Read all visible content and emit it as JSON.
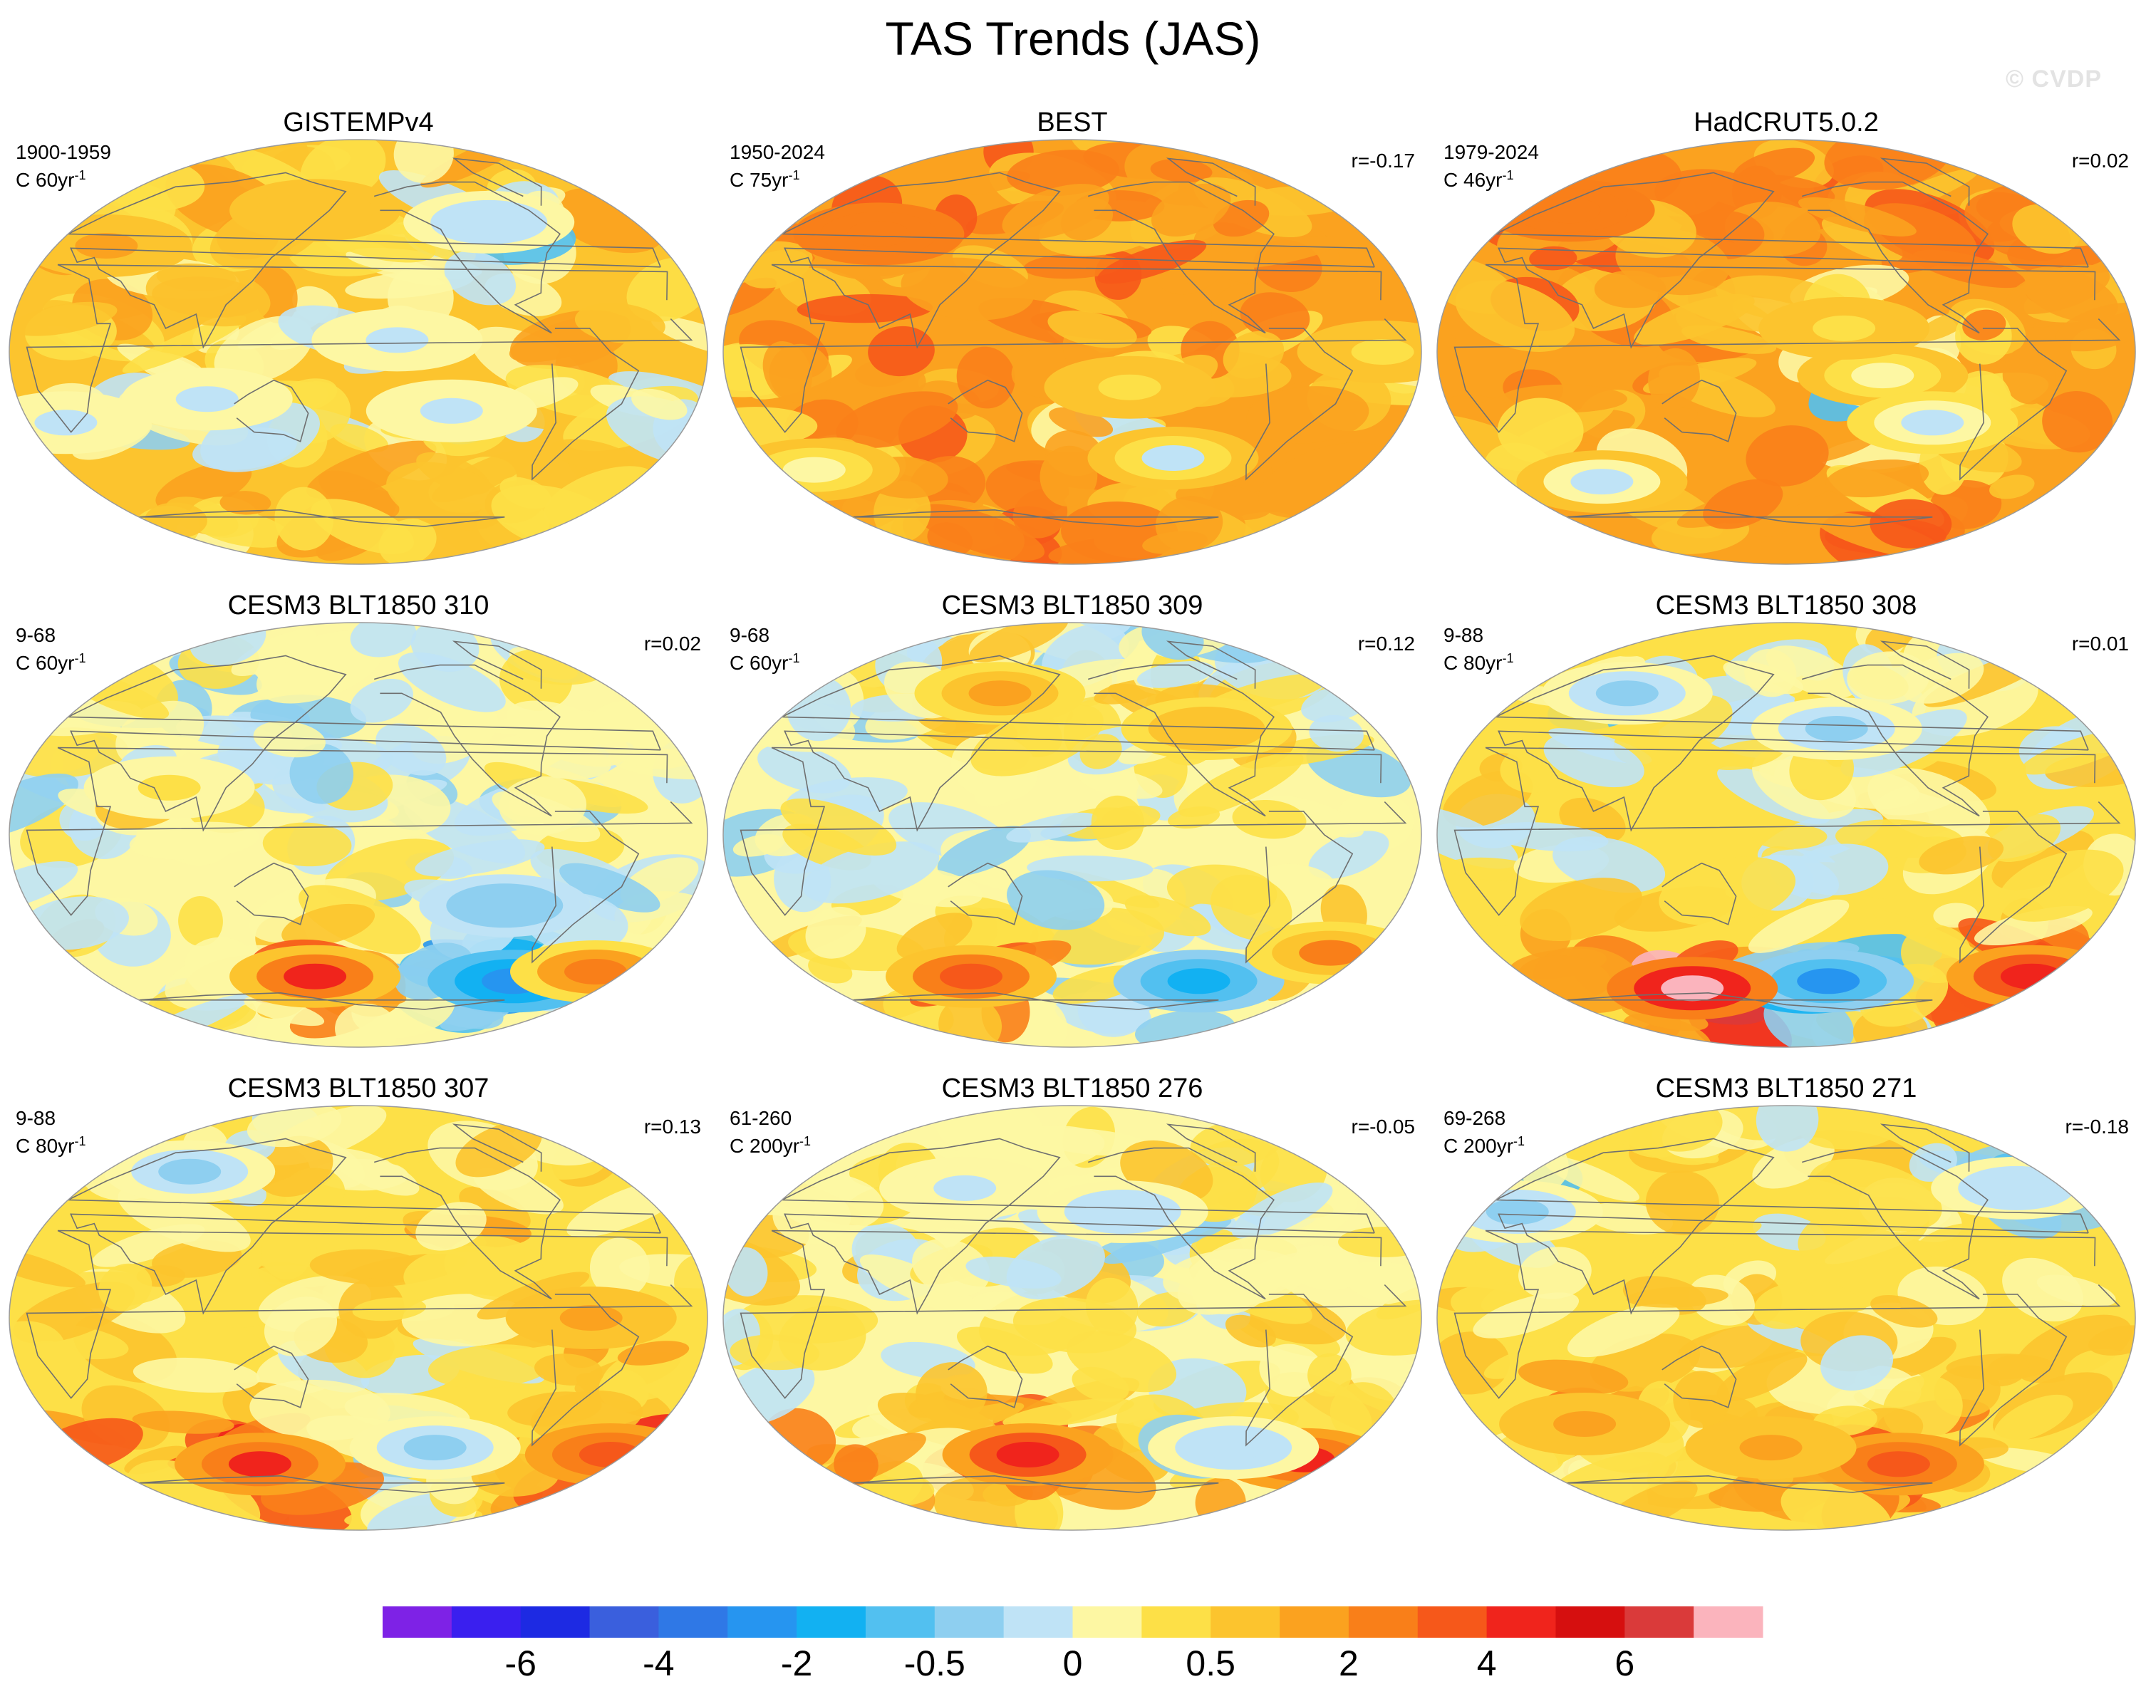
{
  "title": "TAS Trends (JAS)",
  "watermark": "© CVDP",
  "chart_data": {
    "type": "heatmap",
    "title": "TAS Trends (JAS)",
    "projection": "Robinson-like global map, Pacific-centered",
    "colorbar": {
      "colors": [
        "#7e22e6",
        "#3a1fef",
        "#1d2ae3",
        "#3a5fdd",
        "#2f78e6",
        "#2695f0",
        "#12b1f2",
        "#52c0f0",
        "#8ecff0",
        "#bfe3f6",
        "#fdf7a3",
        "#fde047",
        "#fcc42e",
        "#fba21f",
        "#f97f19",
        "#f6581a",
        "#f0241c",
        "#d60f0f",
        "#da3a3a",
        "#fbb4bd"
      ],
      "tick_labels": [
        "-6",
        "-4",
        "-2",
        "-0.5",
        "0",
        "0.5",
        "2",
        "4",
        "6"
      ],
      "tick_boundaries": [
        2,
        4,
        6,
        8,
        10,
        12,
        14,
        16,
        18
      ]
    },
    "panels": [
      {
        "title": "GISTEMPv4",
        "period": "1900-1959",
        "units": "C 60yr",
        "units_sup": "-1",
        "r": "",
        "mean_level": 11.7,
        "features": [
          {
            "lon": 150,
            "lat": 60,
            "level": 12.3
          },
          {
            "lon": 100,
            "lat": -20,
            "level": 9.0
          },
          {
            "lon": -160,
            "lat": 5,
            "level": 9.0
          },
          {
            "lon": -130,
            "lat": -25,
            "level": 8.8
          },
          {
            "lon": 20,
            "lat": -30,
            "level": 9.0
          },
          {
            "lon": -95,
            "lat": 55,
            "level": 8.6
          },
          {
            "lon": 30,
            "lat": 45,
            "level": 12.5
          }
        ]
      },
      {
        "title": "BEST",
        "period": "1950-2024",
        "units": "C 75yr",
        "units_sup": "-1",
        "r": "r=-0.17",
        "mean_level": 13.3,
        "features": [
          {
            "lon": -150,
            "lat": -15,
            "level": 11.0
          },
          {
            "lon": -120,
            "lat": -45,
            "level": 9.5
          },
          {
            "lon": 60,
            "lat": 50,
            "level": 14.2
          },
          {
            "lon": -20,
            "lat": 0,
            "level": 11.3
          },
          {
            "lon": 20,
            "lat": -50,
            "level": 10.5
          }
        ]
      },
      {
        "title": "HadCRUT5.0.2",
        "period": "1979-2024",
        "units": "C 46yr",
        "units_sup": "-1",
        "r": "r=0.02",
        "mean_level": 13.2,
        "features": [
          {
            "lon": -130,
            "lat": -10,
            "level": 10.2
          },
          {
            "lon": -150,
            "lat": 10,
            "level": 11.0
          },
          {
            "lon": 30,
            "lat": 60,
            "level": 14.0
          },
          {
            "lon": -100,
            "lat": -30,
            "level": 9.0
          },
          {
            "lon": 60,
            "lat": -55,
            "level": 9.5
          }
        ]
      },
      {
        "title": "CESM3 BLT1850 310",
        "period": "9-68",
        "units": "C 60yr",
        "units_sup": "-1",
        "r": "r=0.02",
        "mean_level": 9.6,
        "features": [
          {
            "lon": -70,
            "lat": -62,
            "level": 4.8
          },
          {
            "lon": 150,
            "lat": -60,
            "level": 15.5
          },
          {
            "lon": -20,
            "lat": -58,
            "level": 13.8
          },
          {
            "lon": 80,
            "lat": 20,
            "level": 10.5
          },
          {
            "lon": -100,
            "lat": -30,
            "level": 8.0
          }
        ]
      },
      {
        "title": "CESM3 BLT1850 309",
        "period": "9-68",
        "units": "C 60yr",
        "units_sup": "-1",
        "r": "r=0.12",
        "mean_level": 9.6,
        "features": [
          {
            "lon": -90,
            "lat": -62,
            "level": 6.5
          },
          {
            "lon": 110,
            "lat": -60,
            "level": 15.0
          },
          {
            "lon": -20,
            "lat": -50,
            "level": 13.5
          },
          {
            "lon": 130,
            "lat": 60,
            "level": 12.5
          },
          {
            "lon": -100,
            "lat": 45,
            "level": 12.3
          }
        ]
      },
      {
        "title": "CESM3 BLT1850 308",
        "period": "9-88",
        "units": "C 80yr",
        "units_sup": "-1",
        "r": "r=0.01",
        "mean_level": 10.6,
        "features": [
          {
            "lon": -150,
            "lat": -62,
            "level": 5.5
          },
          {
            "lon": -10,
            "lat": -60,
            "level": 16.2
          },
          {
            "lon": 110,
            "lat": -65,
            "level": 18.6
          },
          {
            "lon": -150,
            "lat": 45,
            "level": 8.2
          },
          {
            "lon": 70,
            "lat": 60,
            "level": 8.5
          }
        ]
      },
      {
        "title": "CESM3 BLT1850 307",
        "period": "9-88",
        "units": "C 80yr",
        "units_sup": "-1",
        "r": "r=0.13",
        "mean_level": 10.9,
        "features": [
          {
            "lon": -130,
            "lat": -55,
            "level": 7.8
          },
          {
            "lon": -10,
            "lat": -58,
            "level": 14.5
          },
          {
            "lon": 110,
            "lat": -62,
            "level": 15.8
          },
          {
            "lon": 60,
            "lat": 62,
            "level": 8.5
          },
          {
            "lon": -60,
            "lat": 0,
            "level": 12.5
          }
        ]
      },
      {
        "title": "CESM3 BLT1850 276",
        "period": "61-260",
        "units": "C 200yr",
        "units_sup": "-1",
        "r": "r=-0.05",
        "mean_level": 10.4,
        "features": [
          {
            "lon": 150,
            "lat": -58,
            "level": 16.2
          },
          {
            "lon": -20,
            "lat": -60,
            "level": 15.5
          },
          {
            "lon": -150,
            "lat": 45,
            "level": 9.0
          },
          {
            "lon": 110,
            "lat": 55,
            "level": 9.2
          },
          {
            "lon": -75,
            "lat": -55,
            "level": 8.8
          }
        ]
      },
      {
        "title": "CESM3 BLT1850 271",
        "period": "69-268",
        "units": "C 200yr",
        "units_sup": "-1",
        "r": "r=-0.18",
        "mean_level": 10.9,
        "features": [
          {
            "lon": -100,
            "lat": -62,
            "level": 14.8
          },
          {
            "lon": 20,
            "lat": 45,
            "level": 8.5
          },
          {
            "lon": -30,
            "lat": 55,
            "level": 8.8
          },
          {
            "lon": 170,
            "lat": -55,
            "level": 12.8
          },
          {
            "lon": 60,
            "lat": -45,
            "level": 12.6
          }
        ]
      }
    ]
  }
}
